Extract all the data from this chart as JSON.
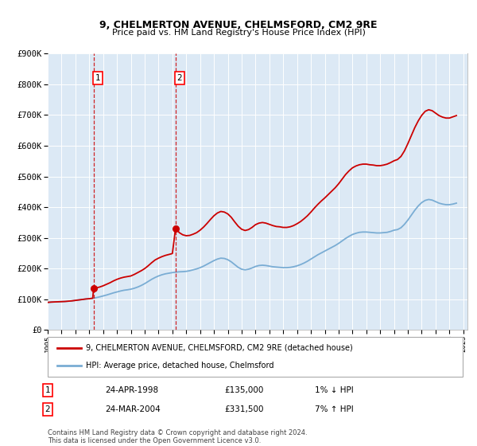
{
  "title": "9, CHELMERTON AVENUE, CHELMSFORD, CM2 9RE",
  "subtitle": "Price paid vs. HM Land Registry's House Price Index (HPI)",
  "background_color": "#ffffff",
  "plot_bg_color": "#dce9f5",
  "grid_color": "#ffffff",
  "line1_color": "#cc0000",
  "line2_color": "#7aadd4",
  "transactions": [
    {
      "label": "1",
      "year": 1998.31,
      "price": 135000
    },
    {
      "label": "2",
      "year": 2004.23,
      "price": 331500
    }
  ],
  "legend_line1": "9, CHELMERTON AVENUE, CHELMSFORD, CM2 9RE (detached house)",
  "legend_line2": "HPI: Average price, detached house, Chelmsford",
  "table_rows": [
    {
      "num": "1",
      "date": "24-APR-1998",
      "price": "£135,000",
      "hpi": "1% ↓ HPI"
    },
    {
      "num": "2",
      "date": "24-MAR-2004",
      "price": "£331,500",
      "hpi": "7% ↑ HPI"
    }
  ],
  "footer": "Contains HM Land Registry data © Crown copyright and database right 2024.\nThis data is licensed under the Open Government Licence v3.0.",
  "ylim": [
    0,
    900000
  ],
  "yticks": [
    0,
    100000,
    200000,
    300000,
    400000,
    500000,
    600000,
    700000,
    800000,
    900000
  ],
  "ytick_labels": [
    "£0",
    "£100K",
    "£200K",
    "£300K",
    "£400K",
    "£500K",
    "£600K",
    "£700K",
    "£800K",
    "£900K"
  ],
  "hpi_data": [
    [
      1995.0,
      90000
    ],
    [
      1995.25,
      91000
    ],
    [
      1995.5,
      91500
    ],
    [
      1995.75,
      92000
    ],
    [
      1996.0,
      92500
    ],
    [
      1996.25,
      93000
    ],
    [
      1996.5,
      94000
    ],
    [
      1996.75,
      95000
    ],
    [
      1997.0,
      96500
    ],
    [
      1997.25,
      98000
    ],
    [
      1997.5,
      99500
    ],
    [
      1997.75,
      101000
    ],
    [
      1998.0,
      102000
    ],
    [
      1998.25,
      103500
    ],
    [
      1998.5,
      105500
    ],
    [
      1998.75,
      108000
    ],
    [
      1999.0,
      111000
    ],
    [
      1999.25,
      114000
    ],
    [
      1999.5,
      117500
    ],
    [
      1999.75,
      121000
    ],
    [
      2000.0,
      124000
    ],
    [
      2000.25,
      127000
    ],
    [
      2000.5,
      129500
    ],
    [
      2000.75,
      131000
    ],
    [
      2001.0,
      133000
    ],
    [
      2001.25,
      136000
    ],
    [
      2001.5,
      140000
    ],
    [
      2001.75,
      145000
    ],
    [
      2002.0,
      151000
    ],
    [
      2002.25,
      158000
    ],
    [
      2002.5,
      165000
    ],
    [
      2002.75,
      171000
    ],
    [
      2003.0,
      176000
    ],
    [
      2003.25,
      180000
    ],
    [
      2003.5,
      183000
    ],
    [
      2003.75,
      185000
    ],
    [
      2004.0,
      187000
    ],
    [
      2004.25,
      188500
    ],
    [
      2004.5,
      189500
    ],
    [
      2004.75,
      190000
    ],
    [
      2005.0,
      191000
    ],
    [
      2005.25,
      193000
    ],
    [
      2005.5,
      196000
    ],
    [
      2005.75,
      199000
    ],
    [
      2006.0,
      203000
    ],
    [
      2006.25,
      208000
    ],
    [
      2006.5,
      214000
    ],
    [
      2006.75,
      220000
    ],
    [
      2007.0,
      226000
    ],
    [
      2007.25,
      231000
    ],
    [
      2007.5,
      234000
    ],
    [
      2007.75,
      233000
    ],
    [
      2008.0,
      229000
    ],
    [
      2008.25,
      222000
    ],
    [
      2008.5,
      213000
    ],
    [
      2008.75,
      204000
    ],
    [
      2009.0,
      198000
    ],
    [
      2009.25,
      196000
    ],
    [
      2009.5,
      198000
    ],
    [
      2009.75,
      202000
    ],
    [
      2010.0,
      207000
    ],
    [
      2010.25,
      210000
    ],
    [
      2010.5,
      211000
    ],
    [
      2010.75,
      210000
    ],
    [
      2011.0,
      208000
    ],
    [
      2011.25,
      206000
    ],
    [
      2011.5,
      205000
    ],
    [
      2011.75,
      204000
    ],
    [
      2012.0,
      203000
    ],
    [
      2012.25,
      203000
    ],
    [
      2012.5,
      204000
    ],
    [
      2012.75,
      206000
    ],
    [
      2013.0,
      209000
    ],
    [
      2013.25,
      213000
    ],
    [
      2013.5,
      218000
    ],
    [
      2013.75,
      224000
    ],
    [
      2014.0,
      231000
    ],
    [
      2014.25,
      238000
    ],
    [
      2014.5,
      245000
    ],
    [
      2014.75,
      251000
    ],
    [
      2015.0,
      257000
    ],
    [
      2015.25,
      263000
    ],
    [
      2015.5,
      269000
    ],
    [
      2015.75,
      275000
    ],
    [
      2016.0,
      282000
    ],
    [
      2016.25,
      290000
    ],
    [
      2016.5,
      298000
    ],
    [
      2016.75,
      305000
    ],
    [
      2017.0,
      311000
    ],
    [
      2017.25,
      315000
    ],
    [
      2017.5,
      318000
    ],
    [
      2017.75,
      319000
    ],
    [
      2018.0,
      319000
    ],
    [
      2018.25,
      318000
    ],
    [
      2018.5,
      317000
    ],
    [
      2018.75,
      316000
    ],
    [
      2019.0,
      316000
    ],
    [
      2019.25,
      317000
    ],
    [
      2019.5,
      318000
    ],
    [
      2019.75,
      321000
    ],
    [
      2020.0,
      325000
    ],
    [
      2020.25,
      327000
    ],
    [
      2020.5,
      333000
    ],
    [
      2020.75,
      344000
    ],
    [
      2021.0,
      358000
    ],
    [
      2021.25,
      374000
    ],
    [
      2021.5,
      390000
    ],
    [
      2021.75,
      404000
    ],
    [
      2022.0,
      415000
    ],
    [
      2022.25,
      422000
    ],
    [
      2022.5,
      425000
    ],
    [
      2022.75,
      423000
    ],
    [
      2023.0,
      418000
    ],
    [
      2023.25,
      413000
    ],
    [
      2023.5,
      410000
    ],
    [
      2023.75,
      408000
    ],
    [
      2024.0,
      408000
    ],
    [
      2024.25,
      410000
    ],
    [
      2024.5,
      413000
    ]
  ],
  "prop_data": [
    [
      1995.0,
      90000
    ],
    [
      1995.25,
      91000
    ],
    [
      1995.5,
      91500
    ],
    [
      1995.75,
      92000
    ],
    [
      1996.0,
      92500
    ],
    [
      1996.25,
      93000
    ],
    [
      1996.5,
      94000
    ],
    [
      1996.75,
      95000
    ],
    [
      1997.0,
      96500
    ],
    [
      1997.25,
      98000
    ],
    [
      1997.5,
      99500
    ],
    [
      1997.75,
      101000
    ],
    [
      1998.0,
      102000
    ],
    [
      1998.25,
      103500
    ],
    [
      1998.31,
      135000
    ],
    [
      1998.5,
      137000
    ],
    [
      1998.75,
      140000
    ],
    [
      1999.0,
      144000
    ],
    [
      1999.25,
      149000
    ],
    [
      1999.5,
      154000
    ],
    [
      1999.75,
      160000
    ],
    [
      2000.0,
      165000
    ],
    [
      2000.25,
      169000
    ],
    [
      2000.5,
      172000
    ],
    [
      2000.75,
      174000
    ],
    [
      2001.0,
      176000
    ],
    [
      2001.25,
      181000
    ],
    [
      2001.5,
      187000
    ],
    [
      2001.75,
      193000
    ],
    [
      2002.0,
      200000
    ],
    [
      2002.25,
      209000
    ],
    [
      2002.5,
      219000
    ],
    [
      2002.75,
      228000
    ],
    [
      2003.0,
      234000
    ],
    [
      2003.25,
      239000
    ],
    [
      2003.5,
      243000
    ],
    [
      2003.75,
      246000
    ],
    [
      2004.0,
      249000
    ],
    [
      2004.23,
      331500
    ],
    [
      2004.5,
      317000
    ],
    [
      2004.75,
      310000
    ],
    [
      2005.0,
      307000
    ],
    [
      2005.25,
      308000
    ],
    [
      2005.5,
      312000
    ],
    [
      2005.75,
      317000
    ],
    [
      2006.0,
      325000
    ],
    [
      2006.25,
      335000
    ],
    [
      2006.5,
      347000
    ],
    [
      2006.75,
      360000
    ],
    [
      2007.0,
      372000
    ],
    [
      2007.25,
      381000
    ],
    [
      2007.5,
      386000
    ],
    [
      2007.75,
      384000
    ],
    [
      2008.0,
      378000
    ],
    [
      2008.25,
      367000
    ],
    [
      2008.5,
      352000
    ],
    [
      2008.75,
      338000
    ],
    [
      2009.0,
      328000
    ],
    [
      2009.25,
      324000
    ],
    [
      2009.5,
      327000
    ],
    [
      2009.75,
      334000
    ],
    [
      2010.0,
      343000
    ],
    [
      2010.25,
      348000
    ],
    [
      2010.5,
      350000
    ],
    [
      2010.75,
      348000
    ],
    [
      2011.0,
      344000
    ],
    [
      2011.25,
      340000
    ],
    [
      2011.5,
      337000
    ],
    [
      2011.75,
      336000
    ],
    [
      2012.0,
      334000
    ],
    [
      2012.25,
      334000
    ],
    [
      2012.5,
      336000
    ],
    [
      2012.75,
      340000
    ],
    [
      2013.0,
      346000
    ],
    [
      2013.25,
      353000
    ],
    [
      2013.5,
      362000
    ],
    [
      2013.75,
      372000
    ],
    [
      2014.0,
      384000
    ],
    [
      2014.25,
      397000
    ],
    [
      2014.5,
      409000
    ],
    [
      2014.75,
      420000
    ],
    [
      2015.0,
      430000
    ],
    [
      2015.25,
      441000
    ],
    [
      2015.5,
      452000
    ],
    [
      2015.75,
      463000
    ],
    [
      2016.0,
      476000
    ],
    [
      2016.25,
      491000
    ],
    [
      2016.5,
      506000
    ],
    [
      2016.75,
      518000
    ],
    [
      2017.0,
      528000
    ],
    [
      2017.25,
      534000
    ],
    [
      2017.5,
      538000
    ],
    [
      2017.75,
      540000
    ],
    [
      2018.0,
      540000
    ],
    [
      2018.25,
      538000
    ],
    [
      2018.5,
      537000
    ],
    [
      2018.75,
      535000
    ],
    [
      2019.0,
      535000
    ],
    [
      2019.25,
      537000
    ],
    [
      2019.5,
      540000
    ],
    [
      2019.75,
      545000
    ],
    [
      2020.0,
      551000
    ],
    [
      2020.25,
      555000
    ],
    [
      2020.5,
      565000
    ],
    [
      2020.75,
      583000
    ],
    [
      2021.0,
      607000
    ],
    [
      2021.25,
      633000
    ],
    [
      2021.5,
      659000
    ],
    [
      2021.75,
      681000
    ],
    [
      2022.0,
      699000
    ],
    [
      2022.25,
      712000
    ],
    [
      2022.5,
      717000
    ],
    [
      2022.75,
      714000
    ],
    [
      2023.0,
      706000
    ],
    [
      2023.25,
      698000
    ],
    [
      2023.5,
      693000
    ],
    [
      2023.75,
      690000
    ],
    [
      2024.0,
      690000
    ],
    [
      2024.25,
      694000
    ],
    [
      2024.5,
      698000
    ]
  ]
}
